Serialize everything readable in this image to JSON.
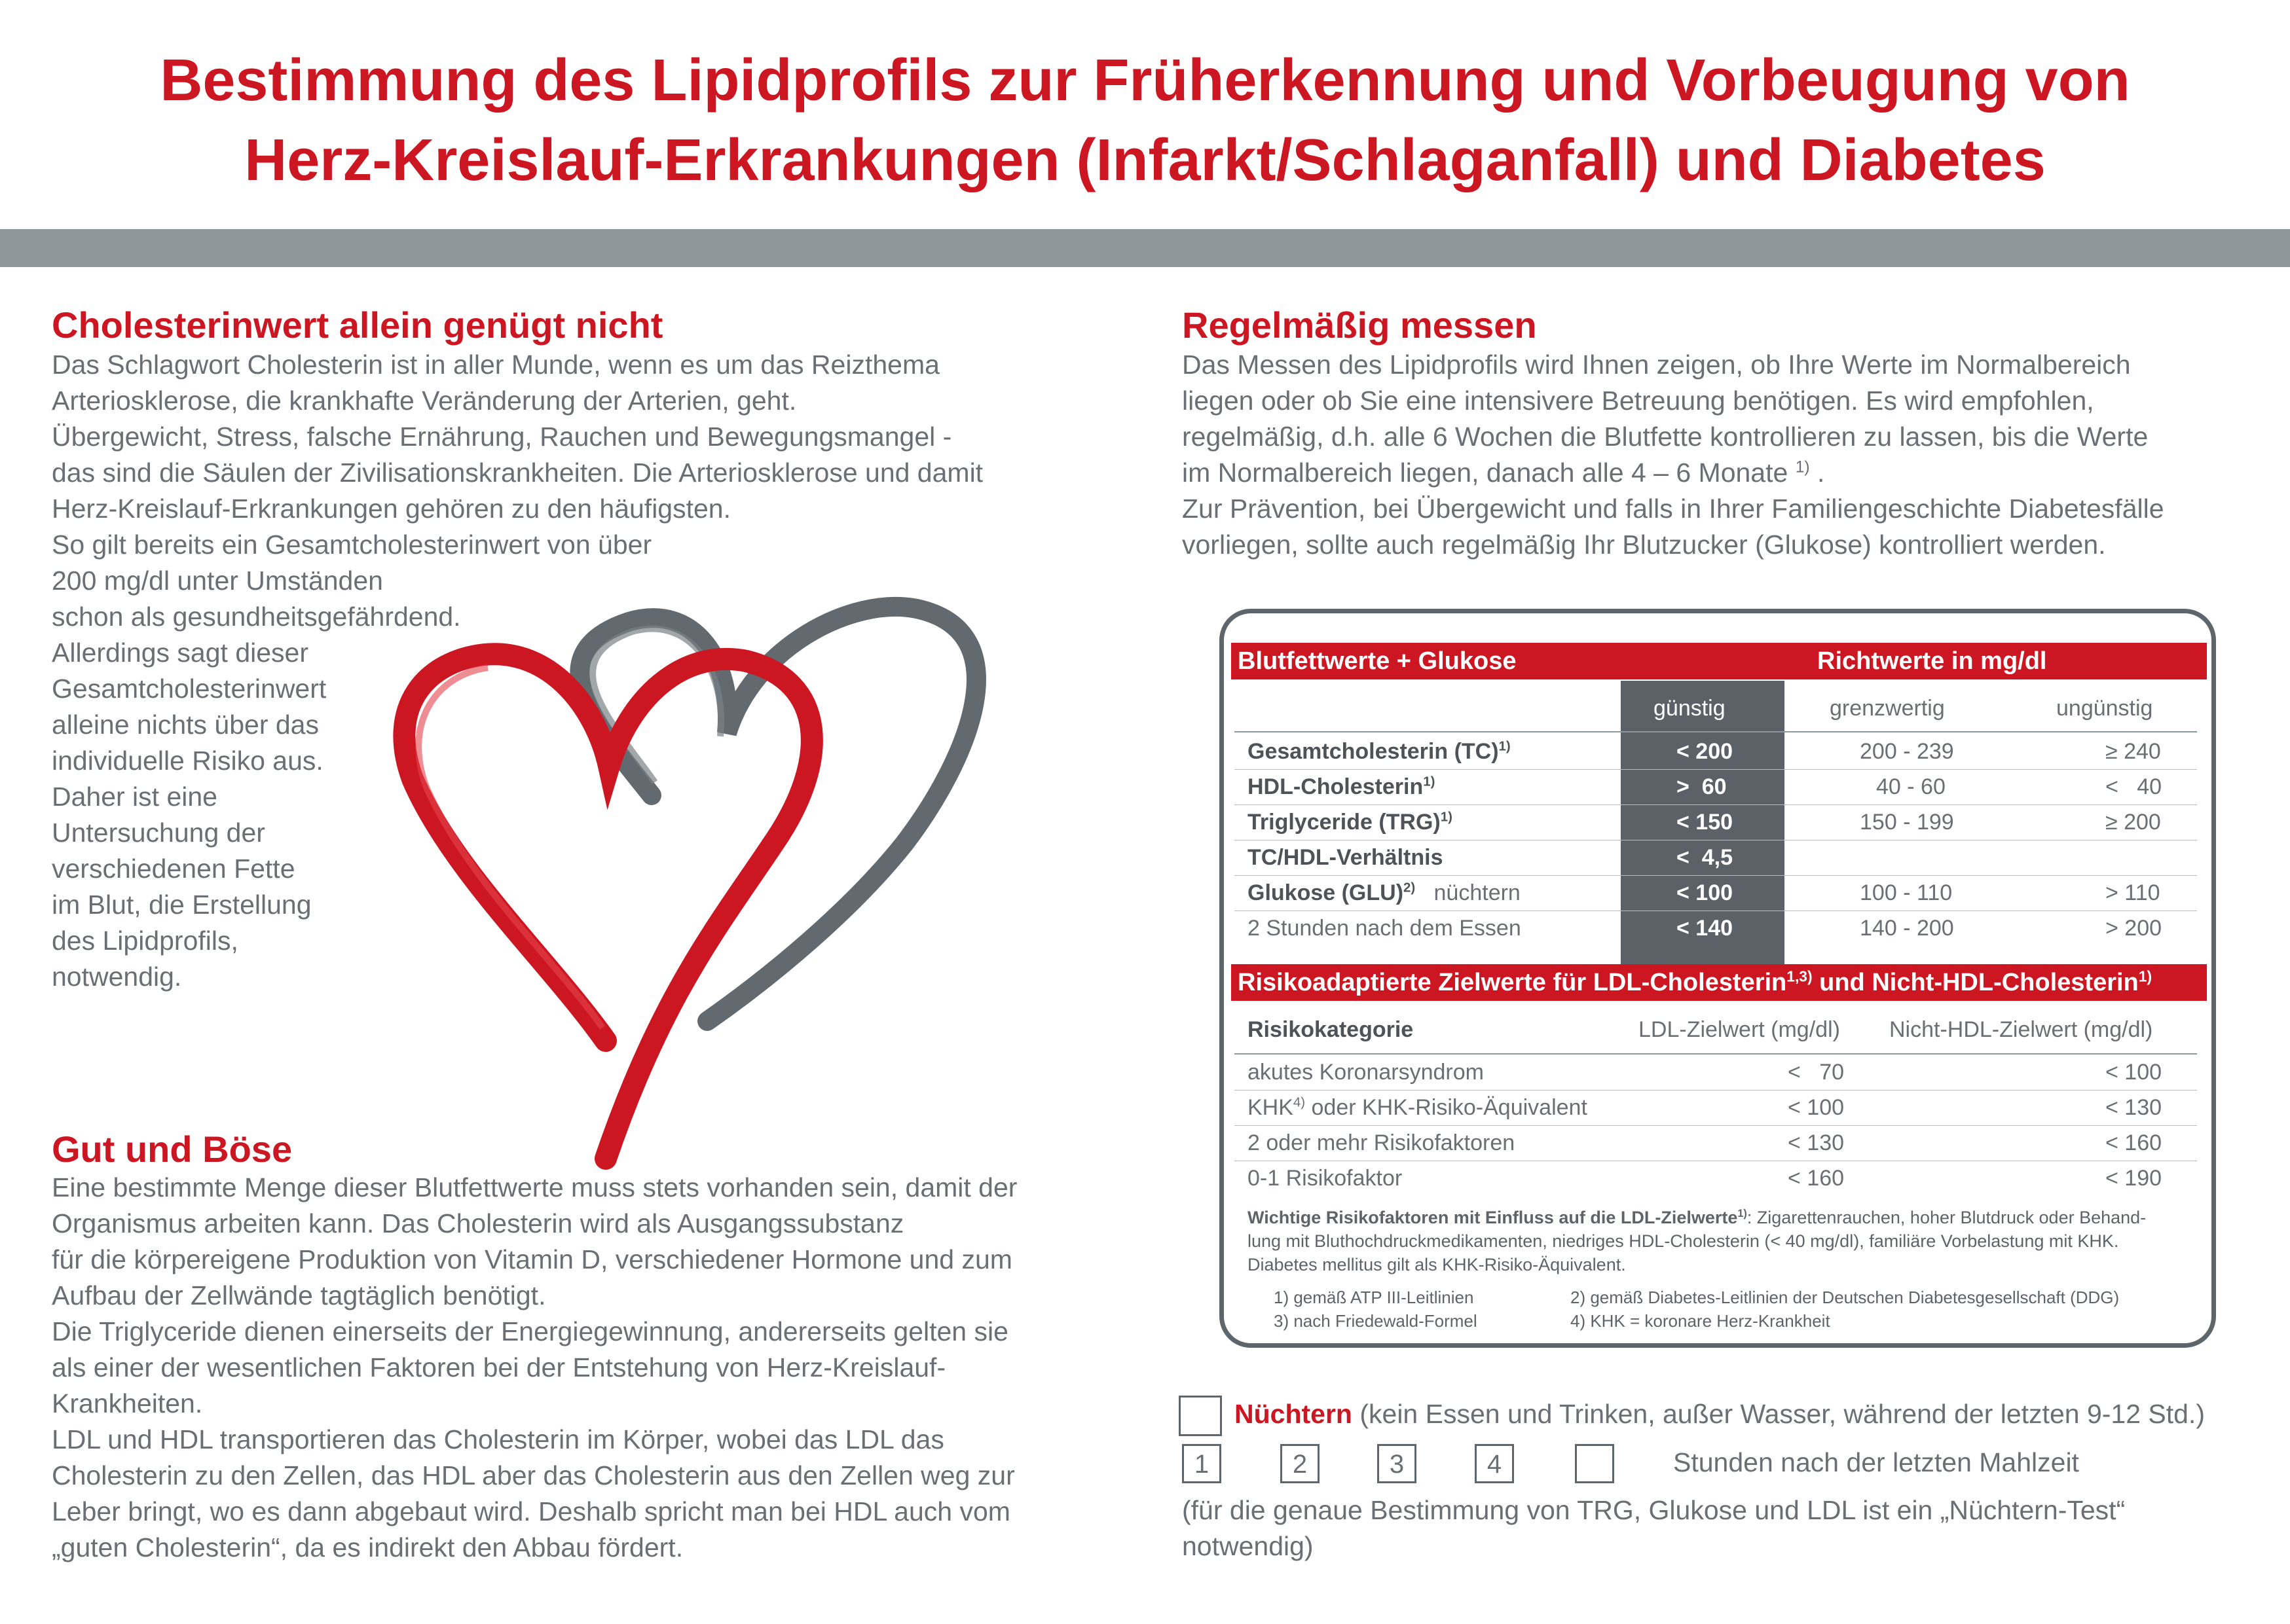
{
  "title": {
    "line1": "Bestimmung des Lipidprofils zur Früherkennung und Vorbeugung von",
    "line2": "Herz-Kreislauf-Erkrankungen (Infarkt/Schlaganfall) und Diabetes"
  },
  "section1": {
    "heading": "Cholesterinwert allein genügt nicht",
    "lines": [
      "Das Schlagwort Cholesterin ist in aller Munde, wenn es um das Reizthema",
      "Arteriosklerose, die krankhafte Veränderung der Arterien, geht.",
      "Übergewicht, Stress, falsche Ernährung, Rauchen und Bewegungsmangel -",
      "das sind die Säulen der Zivilisationskrankheiten. Die Arteriosklerose und damit",
      "Herz-Kreislauf-Erkrankungen gehören zu den häufigsten.",
      "So gilt bereits ein Gesamtcholesterinwert von über",
      "200 mg/dl unter Umständen",
      "schon als gesundheitsgefährdend.",
      "Allerdings sagt dieser",
      "Gesamtcholesterinwert",
      "alleine nichts über das",
      "individuelle Risiko aus.",
      "Daher ist eine",
      "Untersuchung der",
      "verschiedenen Fette",
      "im Blut, die Erstellung",
      "des Lipidprofils,",
      "notwendig."
    ]
  },
  "section2": {
    "heading": "Gut und Böse",
    "lines": [
      "Eine bestimmte Menge dieser Blutfettwerte muss stets vorhanden sein, damit der",
      "Organismus arbeiten kann. Das Cholesterin wird als Ausgangssubstanz",
      "für die körpereigene Produktion von Vitamin D, verschiedener Hormone und zum",
      "Aufbau der Zellwände tagtäglich benötigt.",
      "Die Triglyceride dienen einerseits der Energiegewinnung, andererseits gelten sie",
      "als einer der wesentlichen Faktoren bei der Entstehung von Herz-Kreislauf-",
      "Krankheiten.",
      "LDL und HDL transportieren das Cholesterin im Körper, wobei das LDL das",
      "Cholesterin zu den Zellen, das HDL aber das Cholesterin aus den Zellen weg zur",
      "Leber bringt, wo es dann abgebaut wird. Deshalb spricht man bei HDL auch vom",
      "„guten Cholesterin“, da es indirekt den Abbau fördert."
    ]
  },
  "section3": {
    "heading": "Regelmäßig messen",
    "lines": [
      "Das Messen des Lipidprofils wird Ihnen zeigen, ob Ihre Werte im Normalbereich",
      "liegen oder ob Sie eine intensivere Betreuung benötigen. Es wird empfohlen,",
      "regelmäßig, d.h. alle 6 Wochen die Blutfette kontrollieren zu lassen, bis die Werte",
      "im Normalbereich liegen, danach alle 4 – 6 Monate",
      "Zur Prävention, bei Übergewicht und falls in Ihrer Familiengeschichte Diabetesfälle",
      "vorliegen, sollte auch regelmäßig Ihr Blutzucker (Glukose) kontrolliert werden."
    ],
    "sup": "1)",
    "after_sup": "."
  },
  "table1": {
    "header_left": "Blutfettwerte + Glukose",
    "header_right": "Richtwerte in mg/dl",
    "col_guenstig": "günstig",
    "col_grenz": "grenzwertig",
    "col_unguenstig": "ungünstig",
    "rows": [
      {
        "label": "Gesamtcholesterin (TC)",
        "sup": "1)",
        "g": "< 200",
        "m": "200 - 239",
        "u": "≥ 240"
      },
      {
        "label": "HDL-Cholesterin",
        "sup": "1)",
        "g": ">  60",
        "m": "40 - 60",
        "u": "<   40"
      },
      {
        "label": "Triglyceride (TRG)",
        "sup": "1)",
        "g": "< 150",
        "m": "150 - 199",
        "u": "≥ 200"
      },
      {
        "label": "TC/HDL-Verhältnis",
        "sup": "",
        "g": "<  4,5",
        "m": "",
        "u": ""
      },
      {
        "label": "Glukose (GLU)",
        "sup": "2)",
        "suffix": "nüchtern",
        "g": "< 100",
        "m": "100 - 110",
        "u": "> 110"
      },
      {
        "label": "2 Stunden nach dem Essen",
        "sup": "",
        "g": "< 140",
        "m": "140 - 200",
        "u": "> 200"
      }
    ]
  },
  "table2": {
    "header": "Risikoadaptierte Zielwerte für LDL-Cholesterin",
    "header_sup": "1,3)",
    "header_mid": " und Nicht-HDL-Cholesterin",
    "header_sup2": "1)",
    "col_cat": "Risikokategorie",
    "col_ldl": "LDL-Zielwert (mg/dl)",
    "col_nhdl": "Nicht-HDL-Zielwert (mg/dl)",
    "rows": [
      {
        "label": "akutes Koronarsyndrom",
        "ldl": "<   70",
        "nhdl": "< 100"
      },
      {
        "label": "KHK",
        "sup": "4)",
        "suffix": " oder KHK-Risiko-Äquivalent",
        "ldl": "< 100",
        "nhdl": "< 130"
      },
      {
        "label": "2 oder mehr Risikofaktoren",
        "ldl": "< 130",
        "nhdl": "< 160"
      },
      {
        "label": "0-1 Risikofaktor",
        "ldl": "< 160",
        "nhdl": "< 190"
      }
    ],
    "note_bold": "Wichtige Risikofaktoren mit Einfluss auf die LDL-Zielwerte",
    "note_sup": "1)",
    "note_line1": ": Zigarettenrauchen, hoher Blutdruck oder Behand-",
    "note_line2": "lung mit Bluthochdruckmedikamenten, niedriges HDL-Cholesterin (< 40 mg/dl), familiäre Vorbelastung mit KHK.",
    "note_line3": "Diabetes mellitus gilt als KHK-Risiko-Äquivalent.",
    "footnotes": [
      "1) gemäß ATP III-Leitlinien",
      "2) gemäß Diabetes-Leitlinien der Deutschen Diabetesgesellschaft (DDG)",
      "3) nach Friedewald-Formel",
      "4) KHK = koronare Herz-Krankheit"
    ]
  },
  "fasting": {
    "label_red": "Nüchtern",
    "label_rest": " (kein Essen und Trinken, außer Wasser, während der letzten 9-12 Std.)",
    "boxes": [
      "1",
      "2",
      "3",
      "4",
      ""
    ],
    "hours_text": "Stunden nach der letzten Mahlzeit",
    "note_line1": "(für die genaue Bestimmung von TRG, Glukose und LDL ist ein „Nüchtern-Test“",
    "note_line2": "notwendig)"
  },
  "colors": {
    "accent_red": "#cc1722",
    "grey_bar": "#8e979c",
    "dark_grey": "#5b6166",
    "heart_red": "#cc1722",
    "heart_grey": "#636a6f"
  },
  "icons": [
    "red-heart-icon",
    "grey-heart-icon",
    "checkbox-icon"
  ]
}
